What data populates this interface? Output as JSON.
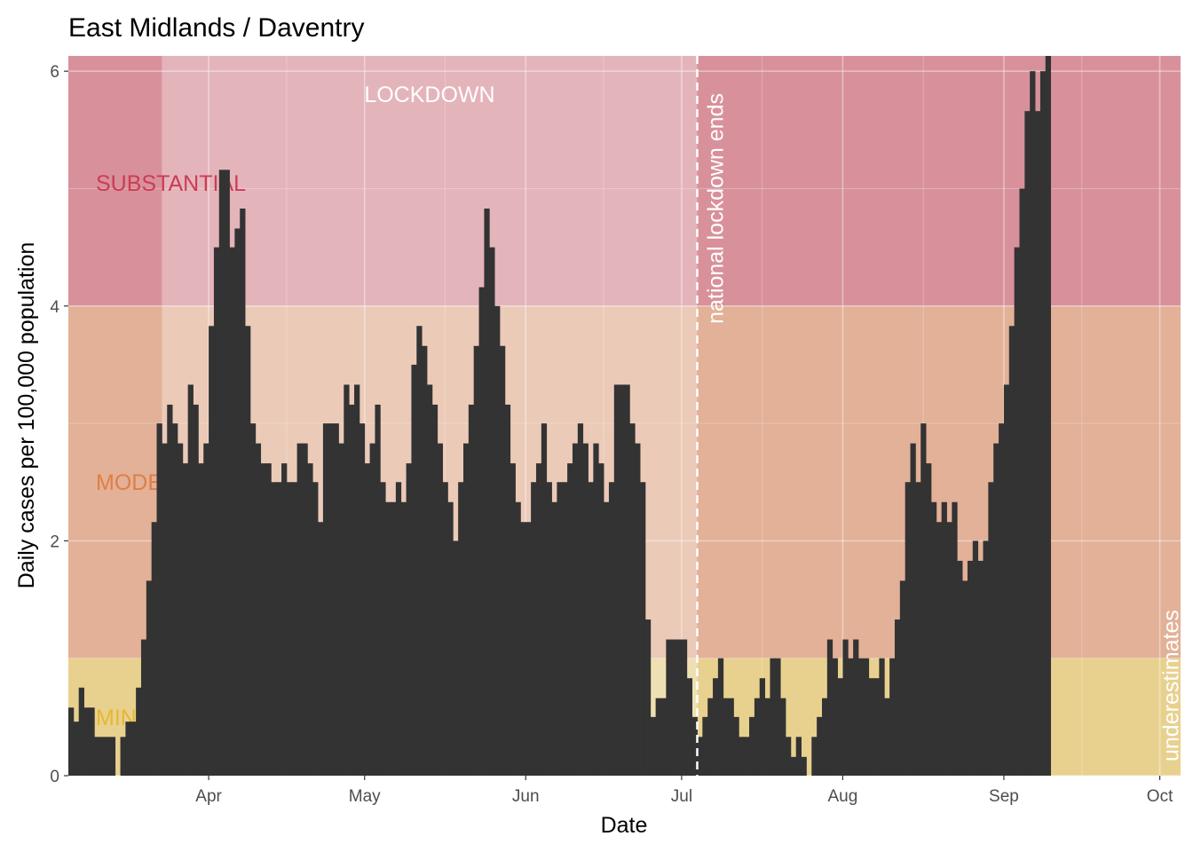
{
  "chart_data": {
    "type": "bar",
    "title": "East Midlands / Daventry",
    "xlabel": "Date",
    "ylabel": "Daily cases per 100,000 population",
    "x_start": "2020-03-05",
    "x_end": "2020-10-05",
    "ylim": [
      0,
      6.13
    ],
    "yticks": [
      0,
      2,
      4,
      6
    ],
    "xticks": [
      {
        "date": "2020-04-01",
        "label": "Apr"
      },
      {
        "date": "2020-05-01",
        "label": "May"
      },
      {
        "date": "2020-06-01",
        "label": "Jun"
      },
      {
        "date": "2020-07-01",
        "label": "Jul"
      },
      {
        "date": "2020-08-01",
        "label": "Aug"
      },
      {
        "date": "2020-09-01",
        "label": "Sep"
      },
      {
        "date": "2020-10-01",
        "label": "Oct"
      }
    ],
    "bands": [
      {
        "label": "MINIMAL",
        "from": 0,
        "to": 1,
        "fill": "#e8d18f",
        "text_color": "#e6b830"
      },
      {
        "label": "MODERATE",
        "from": 1,
        "to": 4,
        "fill": "#e2b197",
        "text_color": "#e07e45"
      },
      {
        "label": "SUBSTANTIAL",
        "from": 4,
        "to": 6.13,
        "fill": "#d8919b",
        "text_color": "#cc3c56"
      }
    ],
    "lockdown": {
      "label": "LOCKDOWN",
      "start": "2020-03-23",
      "end": "2020-07-04",
      "fill": "#ffffff"
    },
    "annotations": [
      {
        "label": "national lockdown ends",
        "date": "2020-07-04",
        "color": "#ffffff"
      },
      {
        "label": "underestimates",
        "date": "2020-10-03",
        "color": "#ff6600"
      }
    ],
    "bar_color": "#333333",
    "values": [
      0.58,
      0.46,
      0.75,
      0.58,
      0.58,
      0.33,
      0.33,
      0.33,
      0.33,
      0,
      0.33,
      0.46,
      0.46,
      0.75,
      1.16,
      1.66,
      2.16,
      3.0,
      2.83,
      3.16,
      3.0,
      2.83,
      2.66,
      3.33,
      3.16,
      2.66,
      2.83,
      3.83,
      4.5,
      5.16,
      5.16,
      4.5,
      4.66,
      4.83,
      3.83,
      3.0,
      2.83,
      2.66,
      2.66,
      2.5,
      2.5,
      2.66,
      2.5,
      2.5,
      2.83,
      2.83,
      2.66,
      2.5,
      2.16,
      3.0,
      3.0,
      3.0,
      2.83,
      3.33,
      3.16,
      3.33,
      3.0,
      2.66,
      2.83,
      3.16,
      2.5,
      2.33,
      2.33,
      2.5,
      2.33,
      2.66,
      3.5,
      3.83,
      3.66,
      3.33,
      3.16,
      2.83,
      2.5,
      2.33,
      2.0,
      2.5,
      2.83,
      3.16,
      3.66,
      4.16,
      4.83,
      4.5,
      4.0,
      3.66,
      3.16,
      2.66,
      2.33,
      2.16,
      2.16,
      2.5,
      2.66,
      3.0,
      2.5,
      2.33,
      2.5,
      2.5,
      2.66,
      2.83,
      3.0,
      2.83,
      2.5,
      2.83,
      2.66,
      2.33,
      2.5,
      3.33,
      3.33,
      3.33,
      3.0,
      2.83,
      2.5,
      1.33,
      0.5,
      0.66,
      0.66,
      1.16,
      1.16,
      1.16,
      1.16,
      0.83,
      0.5,
      0.33,
      0.5,
      0.66,
      0.83,
      1.0,
      0.66,
      0.66,
      0.5,
      0.33,
      0.33,
      0.5,
      0.66,
      0.83,
      0.66,
      1.0,
      1.0,
      0.66,
      0.33,
      0.16,
      0.33,
      0.16,
      0,
      0.33,
      0.5,
      0.66,
      1.16,
      1.0,
      0.83,
      1.16,
      1.0,
      1.16,
      1.0,
      1.0,
      0.83,
      0.83,
      1.0,
      0.66,
      1.0,
      1.33,
      1.66,
      2.5,
      2.83,
      2.5,
      3.0,
      2.66,
      2.33,
      2.16,
      2.33,
      2.16,
      2.33,
      1.83,
      1.66,
      1.83,
      2.0,
      1.83,
      2.0,
      2.5,
      2.83,
      3.0,
      3.33,
      3.83,
      4.5,
      5.0,
      5.66,
      6.0,
      5.66,
      6.0,
      6.13
    ]
  }
}
